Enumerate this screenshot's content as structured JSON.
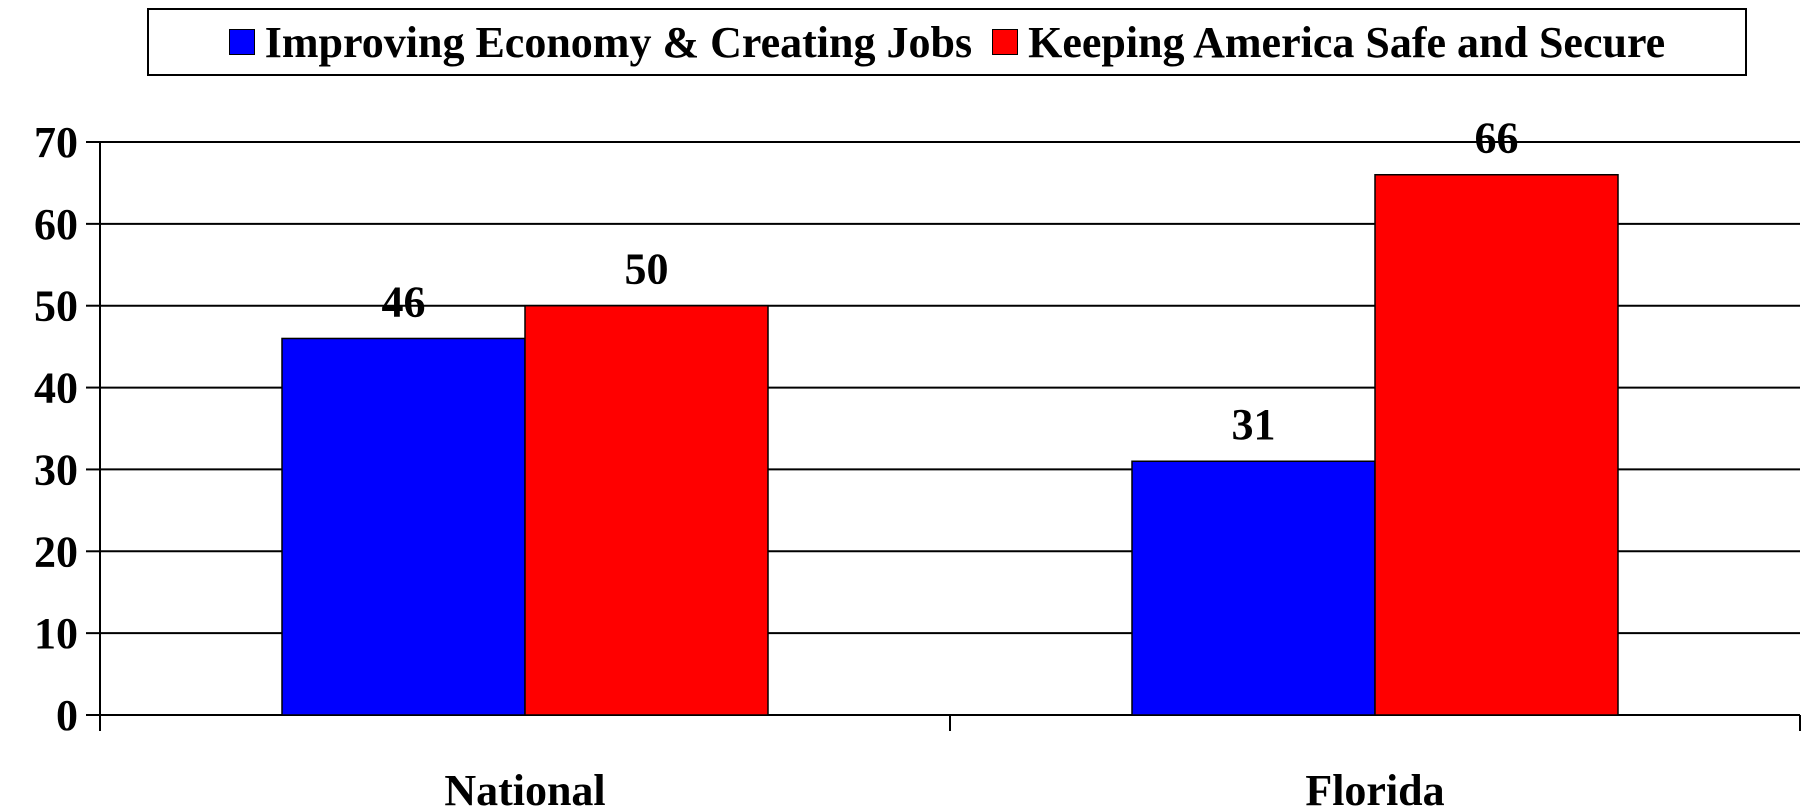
{
  "chart_data": {
    "type": "bar",
    "categories": [
      "National",
      "Florida"
    ],
    "series": [
      {
        "name": "Improving Economy & Creating Jobs",
        "values": [
          46,
          31
        ],
        "color": "#0000ff"
      },
      {
        "name": "Keeping America Safe and Secure",
        "values": [
          50,
          66
        ],
        "color": "#ff0000"
      }
    ],
    "ylim": [
      0,
      70
    ],
    "yticks": [
      0,
      10,
      20,
      30,
      40,
      50,
      60,
      70
    ],
    "grid": true,
    "legend_position": "top",
    "data_labels": true
  }
}
